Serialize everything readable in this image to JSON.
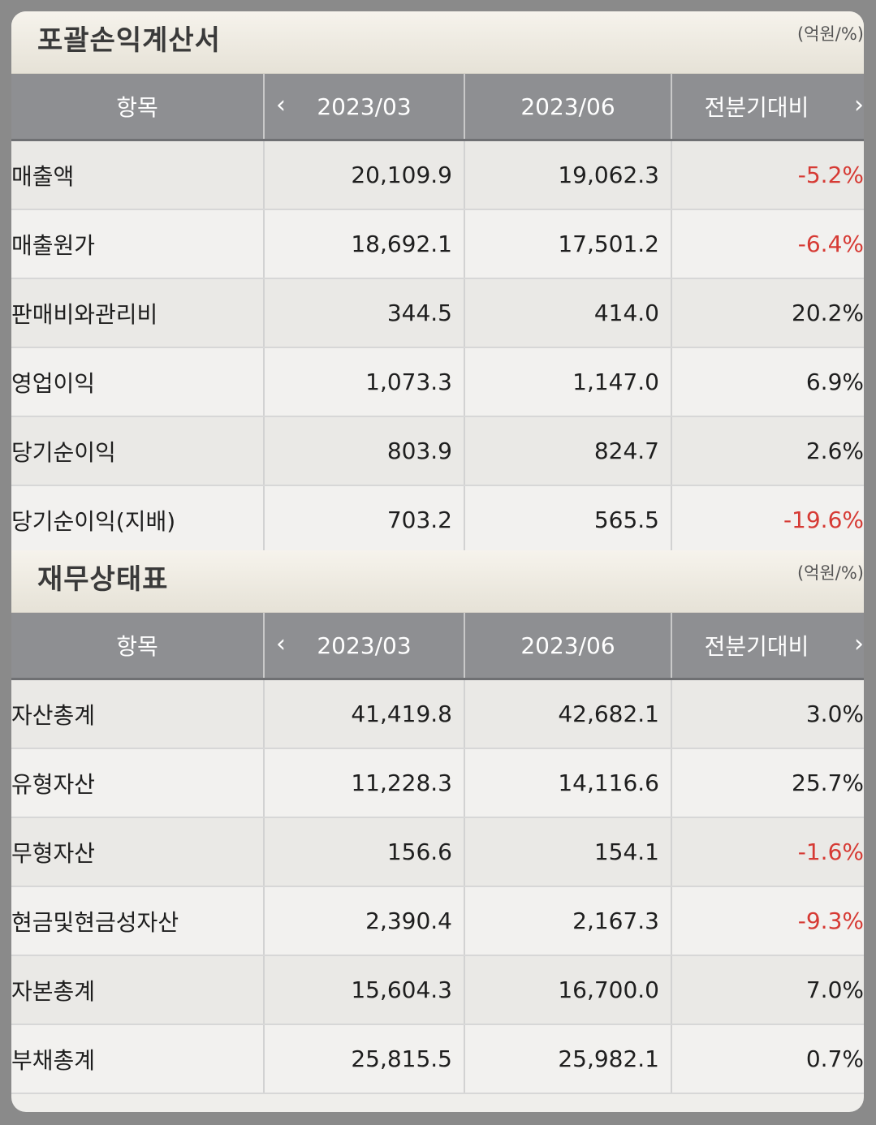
{
  "colors": {
    "negative": "#d63a34",
    "header_bg": "#8e8f92",
    "section_bg": "#efece4"
  },
  "income": {
    "title": "포괄손익계산서",
    "unit": "(억원/%)",
    "headers": {
      "item": "항목",
      "period1": "2023/03",
      "period2": "2023/06",
      "change": "전분기대비"
    },
    "rows": [
      {
        "label": "매출액",
        "p1": "20,109.9",
        "p2": "19,062.3",
        "chg": "-5.2%"
      },
      {
        "label": "매출원가",
        "p1": "18,692.1",
        "p2": "17,501.2",
        "chg": "-6.4%"
      },
      {
        "label": "판매비와관리비",
        "p1": "344.5",
        "p2": "414.0",
        "chg": "20.2%"
      },
      {
        "label": "영업이익",
        "p1": "1,073.3",
        "p2": "1,147.0",
        "chg": "6.9%"
      },
      {
        "label": "당기순이익",
        "p1": "803.9",
        "p2": "824.7",
        "chg": "2.6%"
      },
      {
        "label": "당기순이익(지배)",
        "p1": "703.2",
        "p2": "565.5",
        "chg": "-19.6%"
      }
    ]
  },
  "balance": {
    "title": "재무상태표",
    "unit": "(억원/%)",
    "headers": {
      "item": "항목",
      "period1": "2023/03",
      "period2": "2023/06",
      "change": "전분기대비"
    },
    "rows": [
      {
        "label": "자산총계",
        "p1": "41,419.8",
        "p2": "42,682.1",
        "chg": "3.0%"
      },
      {
        "label": "유형자산",
        "p1": "11,228.3",
        "p2": "14,116.6",
        "chg": "25.7%"
      },
      {
        "label": "무형자산",
        "p1": "156.6",
        "p2": "154.1",
        "chg": "-1.6%"
      },
      {
        "label": "현금및현금성자산",
        "p1": "2,390.4",
        "p2": "2,167.3",
        "chg": "-9.3%"
      },
      {
        "label": "자본총계",
        "p1": "15,604.3",
        "p2": "16,700.0",
        "chg": "7.0%"
      },
      {
        "label": "부채총계",
        "p1": "25,815.5",
        "p2": "25,982.1",
        "chg": "0.7%"
      }
    ]
  },
  "icons": {
    "prev": "chevron-left-icon",
    "next": "chevron-right-icon"
  }
}
